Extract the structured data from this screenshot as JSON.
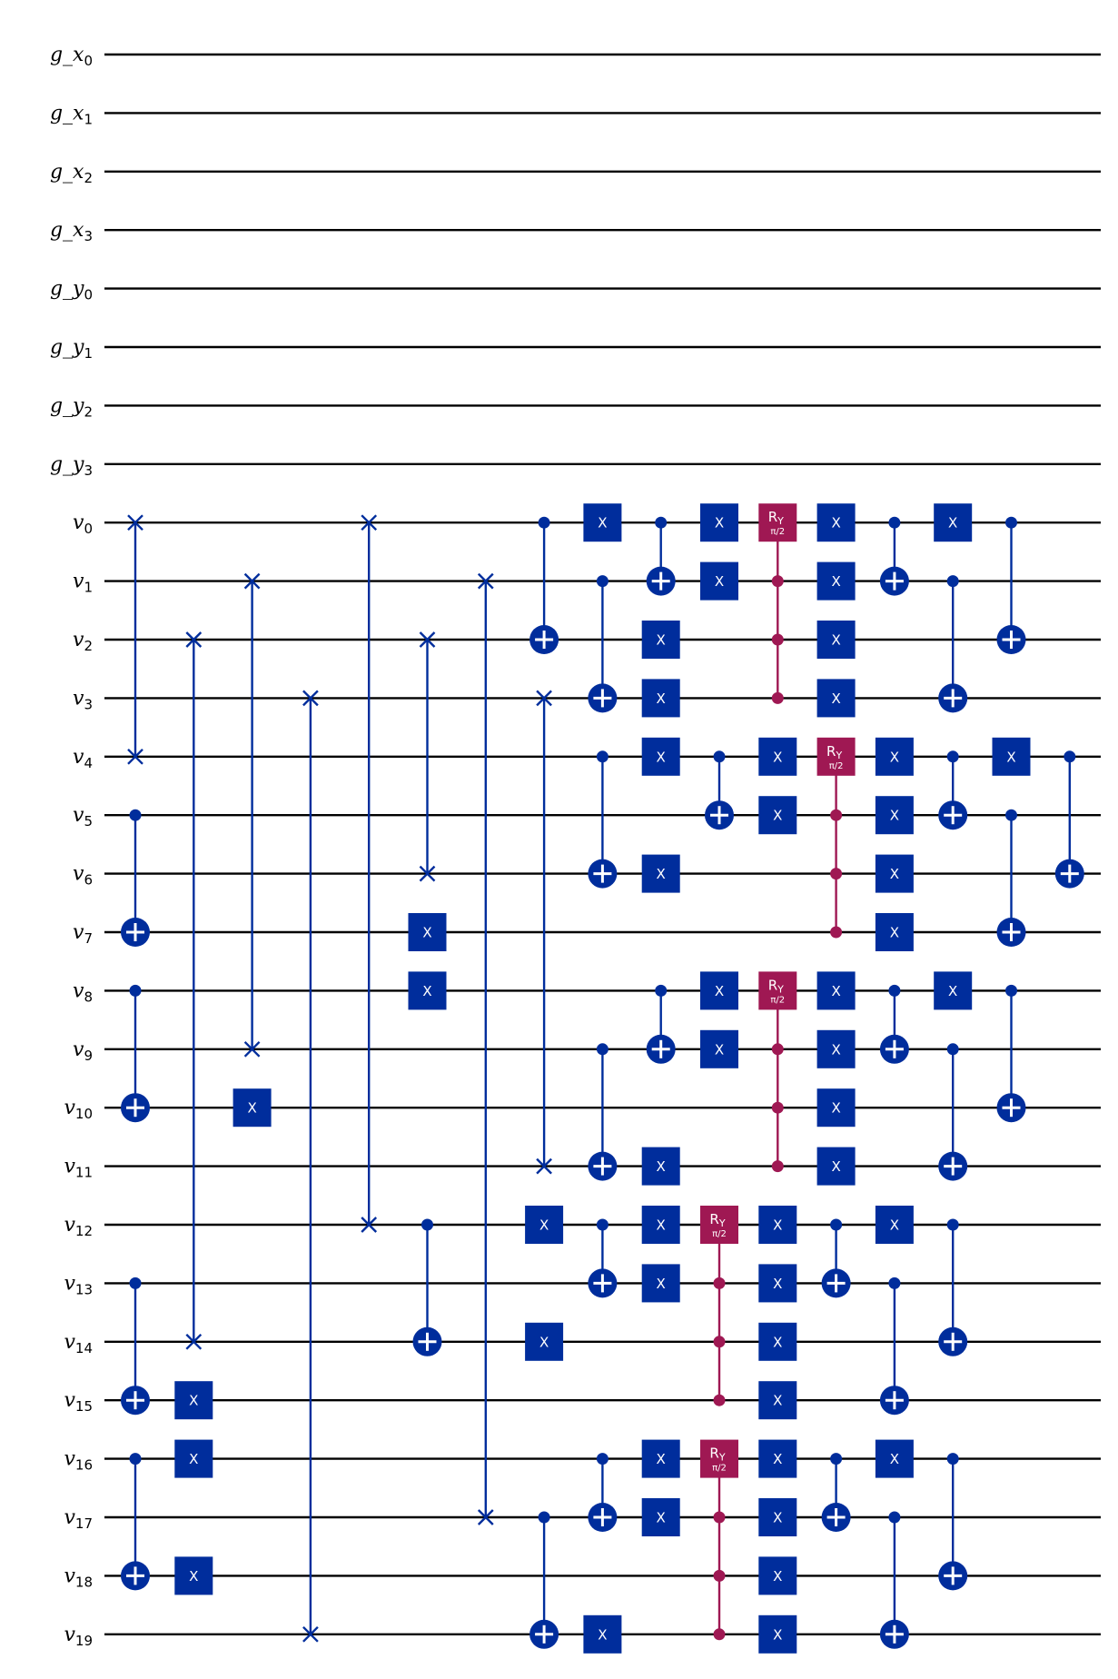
{
  "colors": {
    "background": "#ffffff",
    "wire": "#000000",
    "x_gate": "#002d9c",
    "ry_gate": "#9f1853",
    "gate_text": "#ffffff"
  },
  "qubits": [
    {
      "name": "g_x",
      "index": "0"
    },
    {
      "name": "g_x",
      "index": "1"
    },
    {
      "name": "g_x",
      "index": "2"
    },
    {
      "name": "g_x",
      "index": "3"
    },
    {
      "name": "g_y",
      "index": "0"
    },
    {
      "name": "g_y",
      "index": "1"
    },
    {
      "name": "g_y",
      "index": "2"
    },
    {
      "name": "g_y",
      "index": "3"
    },
    {
      "name": "v",
      "index": "0"
    },
    {
      "name": "v",
      "index": "1"
    },
    {
      "name": "v",
      "index": "2"
    },
    {
      "name": "v",
      "index": "3"
    },
    {
      "name": "v",
      "index": "4"
    },
    {
      "name": "v",
      "index": "5"
    },
    {
      "name": "v",
      "index": "6"
    },
    {
      "name": "v",
      "index": "7"
    },
    {
      "name": "v",
      "index": "8"
    },
    {
      "name": "v",
      "index": "9"
    },
    {
      "name": "v",
      "index": "10"
    },
    {
      "name": "v",
      "index": "11"
    },
    {
      "name": "v",
      "index": "12"
    },
    {
      "name": "v",
      "index": "13"
    },
    {
      "name": "v",
      "index": "14"
    },
    {
      "name": "v",
      "index": "15"
    },
    {
      "name": "v",
      "index": "16"
    },
    {
      "name": "v",
      "index": "17"
    },
    {
      "name": "v",
      "index": "18"
    },
    {
      "name": "v",
      "index": "19"
    }
  ],
  "gate_labels": {
    "x": "X",
    "ry": "R",
    "ry_sub": "Y",
    "ry_param": "π/2"
  },
  "columns": [
    [
      {
        "type": "swap",
        "q": [
          8,
          12
        ]
      },
      {
        "type": "cx",
        "c": 13,
        "t": 15
      },
      {
        "type": "cx",
        "c": 16,
        "t": 18
      },
      {
        "type": "cx",
        "c": 21,
        "t": 23
      },
      {
        "type": "cx",
        "c": 24,
        "t": 26
      }
    ],
    [
      {
        "type": "swap",
        "q": [
          10,
          22
        ]
      },
      {
        "type": "x",
        "q": 23
      },
      {
        "type": "x",
        "q": 24
      },
      {
        "type": "x",
        "q": 26
      }
    ],
    [
      {
        "type": "swap",
        "q": [
          9,
          17
        ]
      },
      {
        "type": "x",
        "q": 18
      }
    ],
    [
      {
        "type": "swap",
        "q": [
          11,
          27
        ]
      }
    ],
    [
      {
        "type": "swap",
        "q": [
          8,
          20
        ]
      }
    ],
    [
      {
        "type": "swap",
        "q": [
          10,
          14
        ]
      },
      {
        "type": "x",
        "q": 15
      },
      {
        "type": "x",
        "q": 16
      },
      {
        "type": "cx",
        "c": 20,
        "t": 22
      }
    ],
    [
      {
        "type": "swap",
        "q": [
          9,
          25
        ]
      }
    ],
    [
      {
        "type": "cx",
        "c": 8,
        "t": 10
      },
      {
        "type": "swap",
        "q": [
          11,
          19
        ]
      },
      {
        "type": "x",
        "q": 20
      },
      {
        "type": "x",
        "q": 22
      },
      {
        "type": "cx",
        "c": 25,
        "t": 27
      }
    ],
    [
      {
        "type": "x",
        "q": 8
      },
      {
        "type": "cx",
        "c": 9,
        "t": 11
      },
      {
        "type": "cx",
        "c": 12,
        "t": 14
      },
      {
        "type": "cx",
        "c": 17,
        "t": 19
      },
      {
        "type": "cx",
        "c": 20,
        "t": 21
      },
      {
        "type": "cx",
        "c": 24,
        "t": 25
      },
      {
        "type": "x",
        "q": 27
      }
    ],
    [
      {
        "type": "cx",
        "c": 8,
        "t": 9
      },
      {
        "type": "x",
        "q": 10
      },
      {
        "type": "x",
        "q": 11
      },
      {
        "type": "x",
        "q": 12
      },
      {
        "type": "x",
        "q": 14
      },
      {
        "type": "cx",
        "c": 16,
        "t": 17
      },
      {
        "type": "x",
        "q": 19
      },
      {
        "type": "x",
        "q": 20
      },
      {
        "type": "x",
        "q": 21
      },
      {
        "type": "x",
        "q": 24
      },
      {
        "type": "x",
        "q": 25
      }
    ],
    [
      {
        "type": "x",
        "q": 8
      },
      {
        "type": "x",
        "q": 9
      },
      {
        "type": "cx",
        "c": 12,
        "t": 13
      },
      {
        "type": "x",
        "q": 16
      },
      {
        "type": "x",
        "q": 17
      },
      {
        "type": "ry",
        "t": 20,
        "c": [
          21,
          22,
          23
        ]
      },
      {
        "type": "ry",
        "t": 24,
        "c": [
          25,
          26,
          27
        ]
      }
    ],
    [
      {
        "type": "ry",
        "t": 8,
        "c": [
          9,
          10,
          11
        ]
      },
      {
        "type": "x",
        "q": 12
      },
      {
        "type": "x",
        "q": 13
      },
      {
        "type": "ry",
        "t": 16,
        "c": [
          17,
          18,
          19
        ]
      },
      {
        "type": "x",
        "q": 20
      },
      {
        "type": "x",
        "q": 21
      },
      {
        "type": "x",
        "q": 22
      },
      {
        "type": "x",
        "q": 23
      },
      {
        "type": "x",
        "q": 24
      },
      {
        "type": "x",
        "q": 25
      },
      {
        "type": "x",
        "q": 26
      },
      {
        "type": "x",
        "q": 27
      }
    ],
    [
      {
        "type": "x",
        "q": 8
      },
      {
        "type": "x",
        "q": 9
      },
      {
        "type": "x",
        "q": 10
      },
      {
        "type": "x",
        "q": 11
      },
      {
        "type": "ry",
        "t": 12,
        "c": [
          13,
          14,
          15
        ]
      },
      {
        "type": "x",
        "q": 16
      },
      {
        "type": "x",
        "q": 17
      },
      {
        "type": "x",
        "q": 18
      },
      {
        "type": "x",
        "q": 19
      },
      {
        "type": "cx",
        "c": 20,
        "t": 21
      },
      {
        "type": "cx",
        "c": 24,
        "t": 25
      }
    ],
    [
      {
        "type": "cx",
        "c": 8,
        "t": 9
      },
      {
        "type": "x",
        "q": 12
      },
      {
        "type": "x",
        "q": 13
      },
      {
        "type": "x",
        "q": 14
      },
      {
        "type": "x",
        "q": 15
      },
      {
        "type": "cx",
        "c": 16,
        "t": 17
      },
      {
        "type": "x",
        "q": 20
      },
      {
        "type": "cx",
        "c": 21,
        "t": 23
      },
      {
        "type": "x",
        "q": 24
      },
      {
        "type": "cx",
        "c": 25,
        "t": 27
      }
    ],
    [
      {
        "type": "x",
        "q": 8
      },
      {
        "type": "cx",
        "c": 9,
        "t": 11
      },
      {
        "type": "cx",
        "c": 12,
        "t": 13
      },
      {
        "type": "x",
        "q": 16
      },
      {
        "type": "cx",
        "c": 17,
        "t": 19
      },
      {
        "type": "cx",
        "c": 20,
        "t": 22
      },
      {
        "type": "cx",
        "c": 24,
        "t": 26
      }
    ],
    [
      {
        "type": "cx",
        "c": 8,
        "t": 10
      },
      {
        "type": "x",
        "q": 12
      },
      {
        "type": "cx",
        "c": 13,
        "t": 15
      },
      {
        "type": "cx",
        "c": 16,
        "t": 18
      }
    ],
    [
      {
        "type": "cx",
        "c": 12,
        "t": 14
      }
    ]
  ]
}
